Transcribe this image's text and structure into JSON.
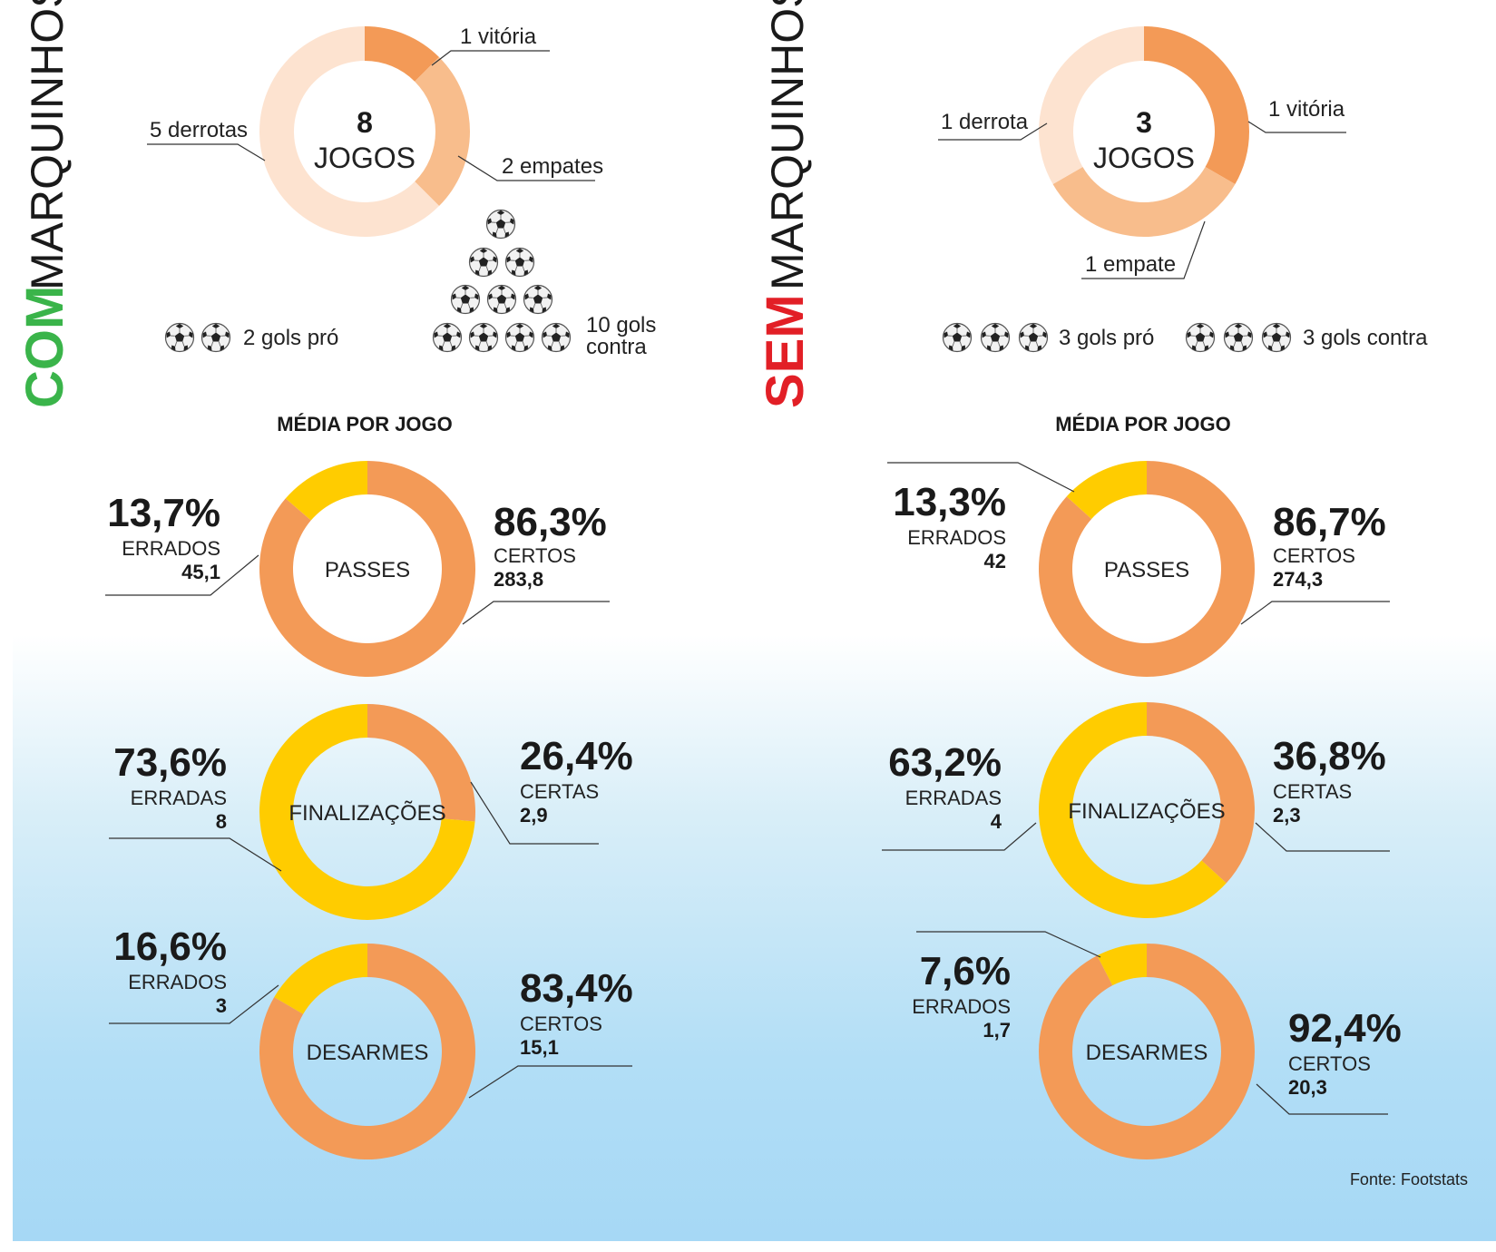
{
  "colors": {
    "orange": "#f39a57",
    "light_orange": "#f8bd8c",
    "pale_orange": "#fde3d0",
    "yellow": "#ffcc00",
    "com_green": "#3ab44a",
    "sem_red": "#e21f26",
    "ball_icon": "soccer-ball-icon"
  },
  "panels": {
    "com": {
      "title_bold": "COM",
      "title_name": "MARQUINHOS",
      "games_num": "8",
      "games_word": "JOGOS",
      "results": {
        "vitoria": "1 vitória",
        "empates": "2 empates",
        "derrotas": "5 derrotas"
      },
      "goals_for": "2 gols pró",
      "goals_against_1": "10 gols",
      "goals_against_2": "contra",
      "media_title": "MÉDIA POR JOGO",
      "passes": {
        "center": "PASSES",
        "left_pct": "13,7%",
        "left_cap": "ERRADOS",
        "left_num": "45,1",
        "right_pct": "86,3%",
        "right_cap": "CERTOS",
        "right_num": "283,8"
      },
      "final": {
        "center": "FINALIZAÇÕES",
        "left_pct": "73,6%",
        "left_cap": "ERRADAS",
        "left_num": "8",
        "right_pct": "26,4%",
        "right_cap": "CERTAS",
        "right_num": "2,9"
      },
      "desarmes": {
        "center": "DESARMES",
        "left_pct": "16,6%",
        "left_cap": "ERRADOS",
        "left_num": "3",
        "right_pct": "83,4%",
        "right_cap": "CERTOS",
        "right_num": "15,1"
      }
    },
    "sem": {
      "title_bold": "SEM",
      "title_name": "MARQUINHOS",
      "games_num": "3",
      "games_word": "JOGOS",
      "results": {
        "vitoria": "1 vitória",
        "empate": "1 empate",
        "derrota": "1 derrota"
      },
      "goals_for": "3 gols pró",
      "goals_against": "3 gols contra",
      "media_title": "MÉDIA POR JOGO",
      "passes": {
        "center": "PASSES",
        "left_pct": "13,3%",
        "left_cap": "ERRADOS",
        "left_num": "42",
        "right_pct": "86,7%",
        "right_cap": "CERTOS",
        "right_num": "274,3"
      },
      "final": {
        "center": "FINALIZAÇÕES",
        "left_pct": "63,2%",
        "left_cap": "ERRADAS",
        "left_num": "4",
        "right_pct": "36,8%",
        "right_cap": "CERTAS",
        "right_num": "2,3"
      },
      "desarmes": {
        "center": "DESARMES",
        "left_pct": "7,6%",
        "left_cap": "ERRADOS",
        "left_num": "1,7",
        "right_pct": "92,4%",
        "right_cap": "CERTOS",
        "right_num": "20,3"
      }
    }
  },
  "source": "Fonte: Footstats",
  "chart_data": [
    {
      "type": "pie",
      "title": "COM MARQUINHOS — 8 JOGOS",
      "categories": [
        "1 vitória",
        "2 empates",
        "5 derrotas"
      ],
      "values": [
        1,
        2,
        5
      ],
      "colors": [
        "#f39a57",
        "#f8bd8c",
        "#fde3d0"
      ]
    },
    {
      "type": "pie",
      "title": "SEM MARQUINHOS — 3 JOGOS",
      "categories": [
        "1 vitória",
        "1 empate",
        "1 derrota"
      ],
      "values": [
        1,
        1,
        1
      ],
      "colors": [
        "#f39a57",
        "#f8bd8c",
        "#fde3d0"
      ]
    },
    {
      "type": "bar",
      "title": "COM MARQUINHOS — gols",
      "categories": [
        "gols pró",
        "gols contra"
      ],
      "values": [
        2,
        10
      ]
    },
    {
      "type": "bar",
      "title": "SEM MARQUINHOS — gols",
      "categories": [
        "gols pró",
        "gols contra"
      ],
      "values": [
        3,
        3
      ]
    },
    {
      "type": "pie",
      "title": "COM — PASSES",
      "categories": [
        "CERTOS",
        "ERRADOS"
      ],
      "values": [
        86.3,
        13.7
      ],
      "counts": [
        283.8,
        45.1
      ]
    },
    {
      "type": "pie",
      "title": "COM — FINALIZAÇÕES",
      "categories": [
        "CERTAS",
        "ERRADAS"
      ],
      "values": [
        26.4,
        73.6
      ],
      "counts": [
        2.9,
        8
      ]
    },
    {
      "type": "pie",
      "title": "COM — DESARMES",
      "categories": [
        "CERTOS",
        "ERRADOS"
      ],
      "values": [
        83.4,
        16.6
      ],
      "counts": [
        15.1,
        3
      ]
    },
    {
      "type": "pie",
      "title": "SEM — PASSES",
      "categories": [
        "CERTOS",
        "ERRADOS"
      ],
      "values": [
        86.7,
        13.3
      ],
      "counts": [
        274.3,
        42
      ]
    },
    {
      "type": "pie",
      "title": "SEM — FINALIZAÇÕES",
      "categories": [
        "CERTAS",
        "ERRADAS"
      ],
      "values": [
        36.8,
        63.2
      ],
      "counts": [
        2.3,
        4
      ]
    },
    {
      "type": "pie",
      "title": "SEM — DESARMES",
      "categories": [
        "CERTOS",
        "ERRADOS"
      ],
      "values": [
        92.4,
        7.6
      ],
      "counts": [
        20.3,
        1.7
      ]
    }
  ]
}
